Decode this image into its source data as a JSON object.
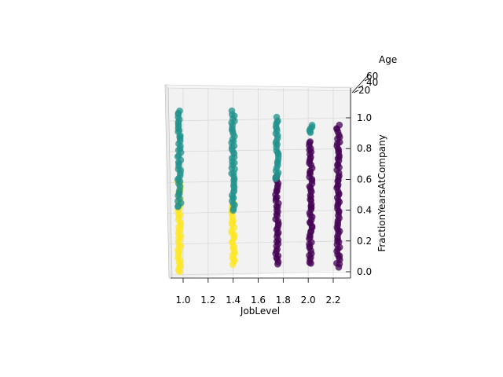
{
  "chart_data": {
    "type": "scatter",
    "projection": "3d",
    "title": "",
    "xlabel": "JobLevel",
    "ylabel": "FractionYearsAtCompany",
    "zlabel": "Age",
    "x_ticks": [
      "1.0",
      "1.2",
      "1.4",
      "1.6",
      "1.8",
      "2.0",
      "2.2"
    ],
    "y_ticks": [
      "0.0",
      "0.2",
      "0.4",
      "0.6",
      "0.8",
      "1.0"
    ],
    "z_ticks": [
      "20",
      "40",
      "60"
    ],
    "xlim": [
      0.9,
      2.3
    ],
    "ylim": [
      -0.03,
      1.05
    ],
    "grid": true,
    "colors": {
      "cluster_0": "#440154",
      "cluster_1": "#21918c",
      "cluster_2": "#fde725",
      "pane": "#f2f2f2",
      "grid": "#d9d9d9"
    },
    "groups": [
      {
        "x": 0.97,
        "cluster": 1,
        "y_min": 0.42,
        "y_max": 1.05
      },
      {
        "x": 0.97,
        "cluster": 2,
        "y_min": 0.0,
        "y_max": 0.6
      },
      {
        "x": 1.4,
        "cluster": 1,
        "y_min": 0.4,
        "y_max": 1.04
      },
      {
        "x": 1.4,
        "cluster": 2,
        "y_min": 0.05,
        "y_max": 0.45
      },
      {
        "x": 1.75,
        "cluster": 1,
        "y_min": 0.6,
        "y_max": 1.0
      },
      {
        "x": 1.75,
        "cluster": 0,
        "y_min": 0.05,
        "y_max": 0.62
      },
      {
        "x": 2.02,
        "cluster": 1,
        "y_min": 0.9,
        "y_max": 0.95
      },
      {
        "x": 2.02,
        "cluster": 0,
        "y_min": 0.05,
        "y_max": 0.85
      },
      {
        "x": 2.24,
        "cluster": 0,
        "y_min": 0.03,
        "y_max": 0.95
      }
    ]
  }
}
